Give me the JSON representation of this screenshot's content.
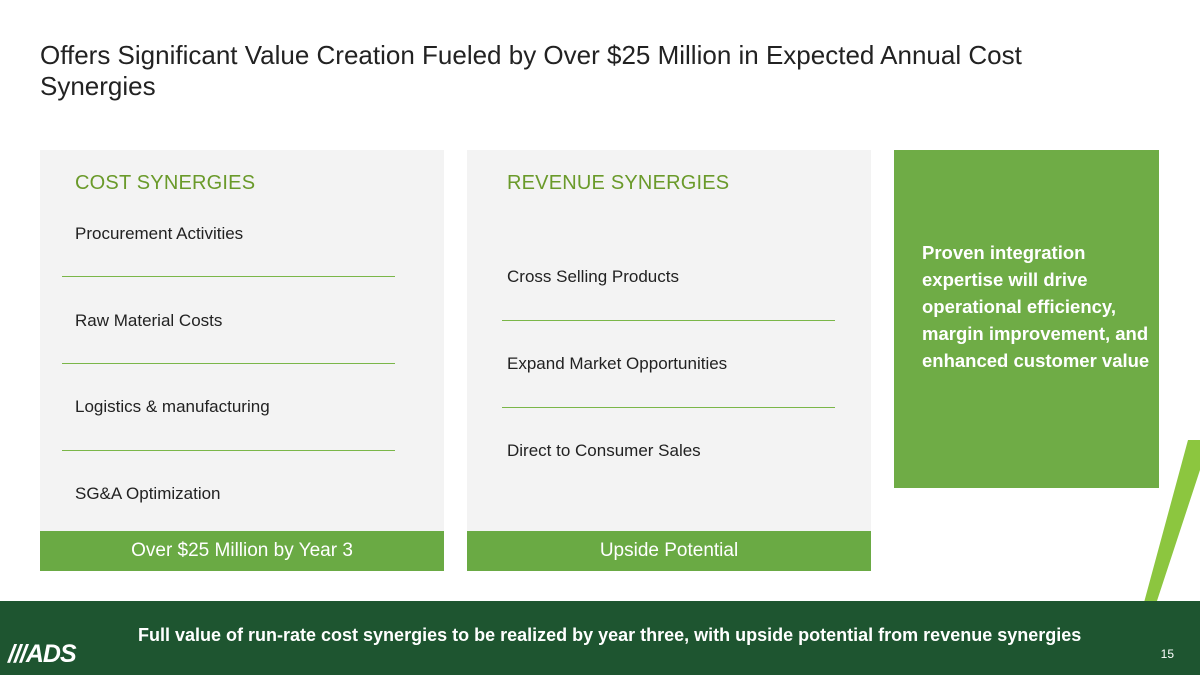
{
  "slide": {
    "title": "Offers Significant Value Creation Fueled by Over $25 Million in Expected Annual Cost Synergies",
    "page_number": "15"
  },
  "cost_synergies": {
    "header": "COST SYNERGIES",
    "items": [
      "Procurement Activities",
      "Raw Material Costs",
      "Logistics & manufacturing",
      "SG&A Optimization"
    ],
    "footer": "Over $25 Million by Year 3"
  },
  "revenue_synergies": {
    "header": "REVENUE SYNERGIES",
    "items": [
      "Cross Selling Products",
      "Expand Market Opportunities",
      "Direct to Consumer Sales"
    ],
    "footer": "Upside Potential"
  },
  "callout": {
    "text": "Proven integration expertise will drive operational efficiency, margin improvement, and enhanced customer value"
  },
  "bottom_band": {
    "text": "Full value of run-rate cost synergies to be realized by year three, with upside potential from revenue synergies",
    "logo_text": "///ADS"
  },
  "colors": {
    "accent_green": "#6aaa44",
    "dark_green": "#1e5530",
    "header_green": "#6a9a2a"
  }
}
